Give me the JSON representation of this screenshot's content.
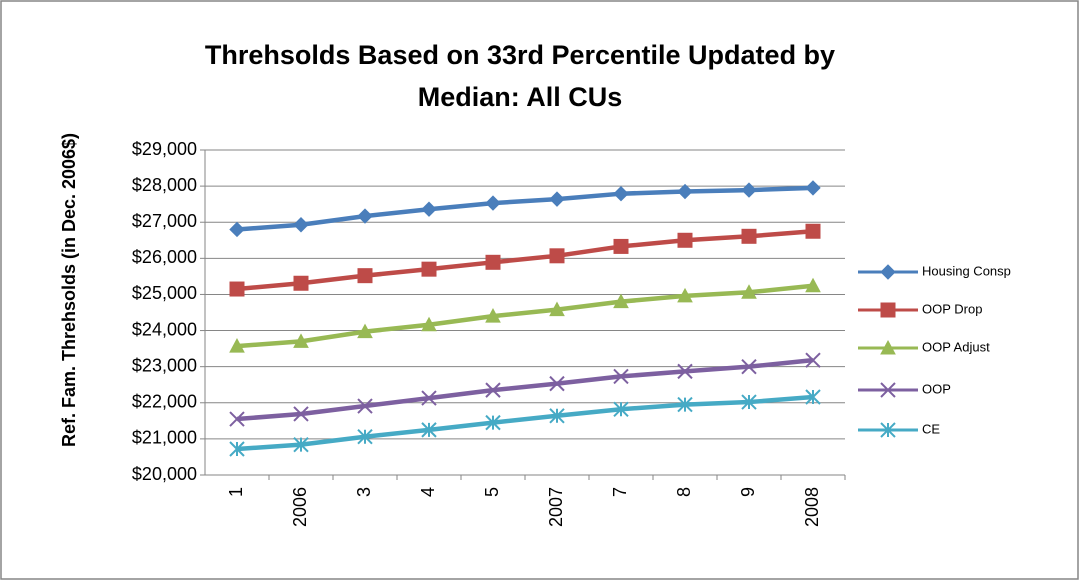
{
  "chart_data": {
    "type": "line",
    "title": [
      "Threhsolds Based on 33rd Percentile Updated by",
      "Median:  All CUs"
    ],
    "y_label": "Ref. Fam. Threhsolds (in Dec. 2006$)",
    "categories": [
      "1",
      "2006",
      "3",
      "4",
      "5",
      "2007",
      "7",
      "8",
      "9",
      "2008"
    ],
    "series": [
      {
        "name": "Housing Consp",
        "color": "#4a7ebb",
        "marker": "diamond",
        "values": [
          26800,
          26930,
          27170,
          27360,
          27530,
          27640,
          27790,
          27850,
          27890,
          27950
        ]
      },
      {
        "name": "OOP Drop",
        "color": "#be4b48",
        "marker": "square",
        "values": [
          25150,
          25310,
          25520,
          25700,
          25890,
          26070,
          26330,
          26500,
          26610,
          26750
        ]
      },
      {
        "name": "OOP Adjust",
        "color": "#98b954",
        "marker": "triangle",
        "values": [
          23570,
          23700,
          23970,
          24160,
          24400,
          24580,
          24800,
          24960,
          25060,
          25240
        ]
      },
      {
        "name": "OOP",
        "color": "#7d60a0",
        "marker": "x",
        "values": [
          21550,
          21690,
          21910,
          22130,
          22350,
          22530,
          22730,
          22870,
          23000,
          23180
        ]
      },
      {
        "name": "CE",
        "color": "#46aac5",
        "marker": "asterisk",
        "values": [
          20720,
          20840,
          21060,
          21250,
          21450,
          21640,
          21820,
          21950,
          22020,
          22160
        ]
      }
    ],
    "ylim": [
      20000,
      29000
    ],
    "yticks": [
      {
        "value": 20000,
        "label": "$20,000"
      },
      {
        "value": 21000,
        "label": "$21,000"
      },
      {
        "value": 22000,
        "label": "$22,000"
      },
      {
        "value": 23000,
        "label": "$23,000"
      },
      {
        "value": 24000,
        "label": "$24,000"
      },
      {
        "value": 25000,
        "label": "$25,000"
      },
      {
        "value": 26000,
        "label": "$26,000"
      },
      {
        "value": 27000,
        "label": "$27,000"
      },
      {
        "value": 28000,
        "label": "$28,000"
      },
      {
        "value": 29000,
        "label": "$29,000"
      }
    ],
    "grid": true,
    "legend": "right"
  }
}
